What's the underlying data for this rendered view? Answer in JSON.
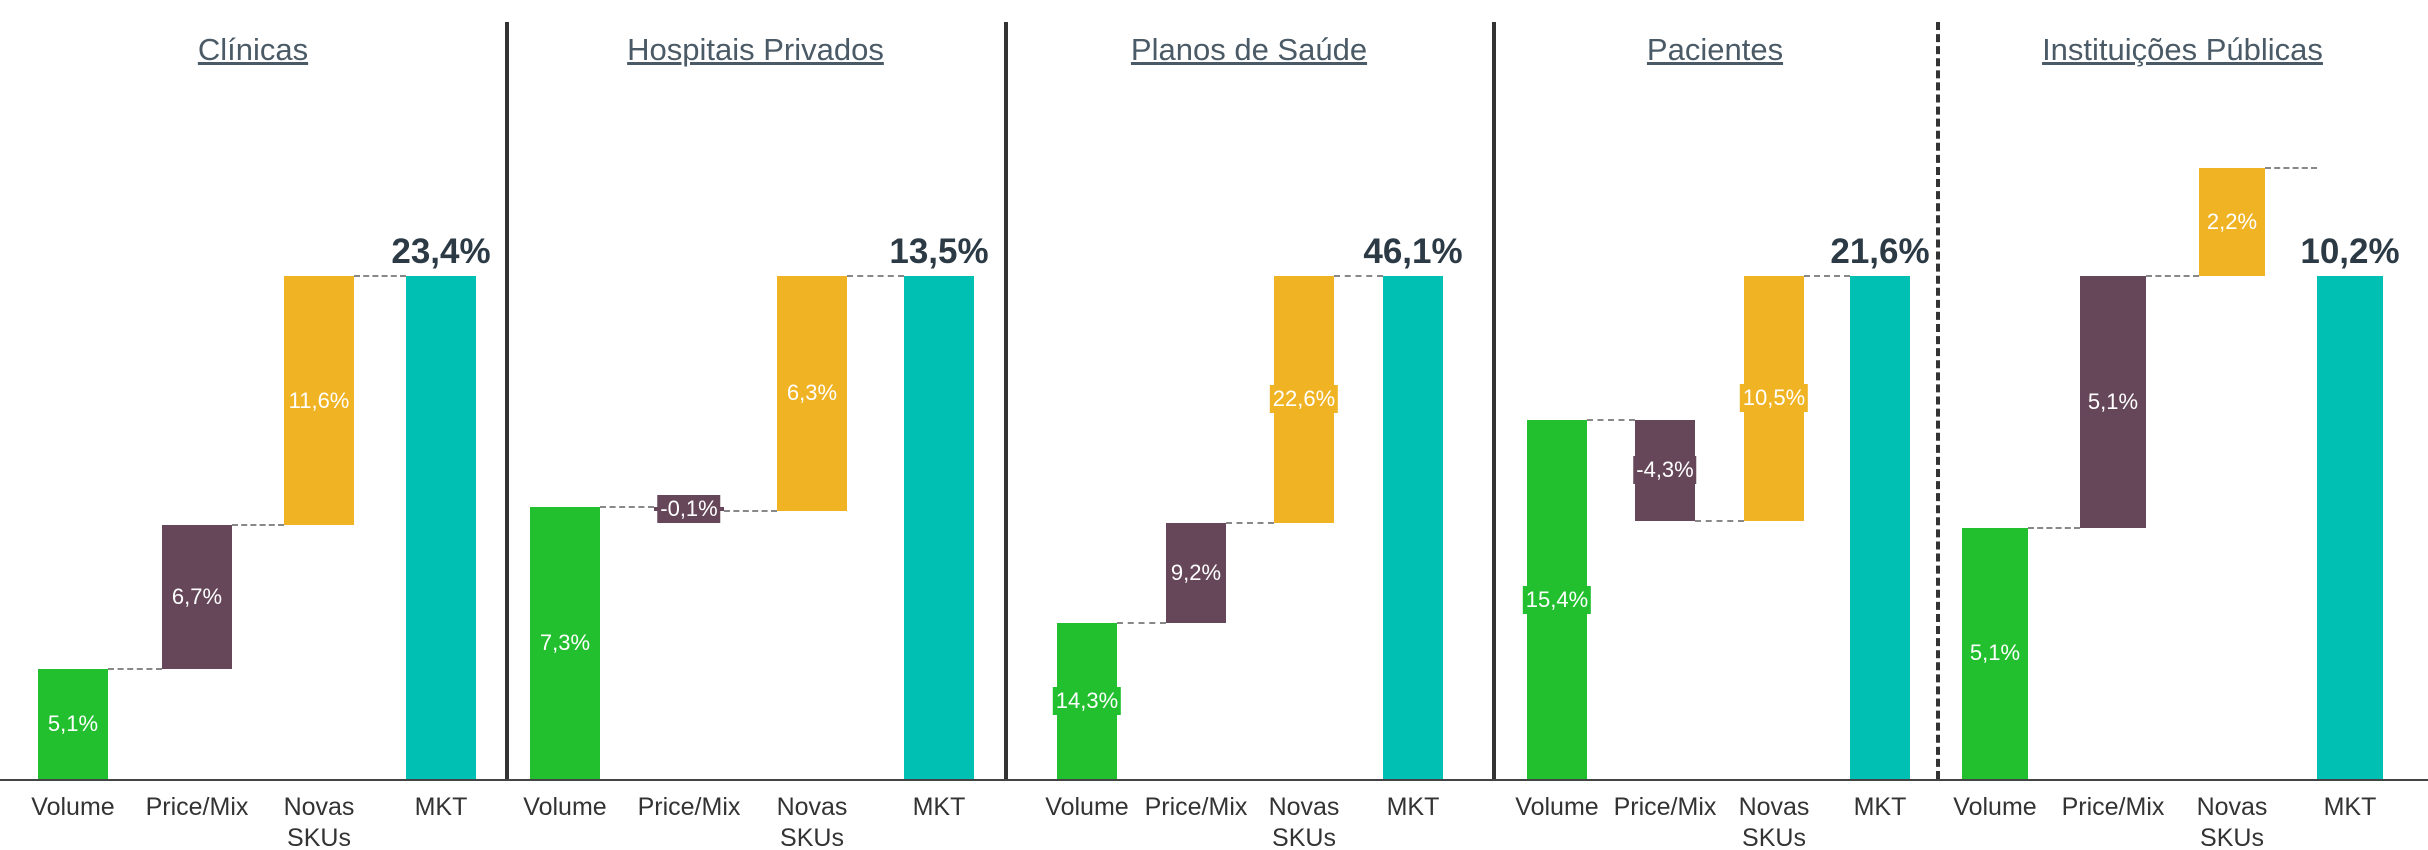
{
  "chart_data": [
    {
      "type": "waterfall",
      "title": "Clínicas",
      "categories": [
        "Volume",
        "Price/Mix",
        "Novas SKUs",
        "MKT"
      ],
      "values": [
        5.1,
        6.7,
        11.6,
        23.4
      ],
      "value_labels": [
        "5,1%",
        "6,7%",
        "11,6%",
        "23,4%"
      ],
      "colors": [
        "#22c02e",
        "#66475a",
        "#f0b323",
        "#00bfb3"
      ]
    },
    {
      "type": "waterfall",
      "title": "Hospitais Privados",
      "categories": [
        "Volume",
        "Price/Mix",
        "Novas SKUs",
        "MKT"
      ],
      "values": [
        7.3,
        -0.1,
        6.3,
        13.5
      ],
      "value_labels": [
        "7,3%",
        "-0,1%",
        "6,3%",
        "13,5%"
      ],
      "colors": [
        "#22c02e",
        "#66475a",
        "#f0b323",
        "#00bfb3"
      ]
    },
    {
      "type": "waterfall",
      "title": "Planos de Saúde",
      "categories": [
        "Volume",
        "Price/Mix",
        "Novas SKUs",
        "MKT"
      ],
      "values": [
        14.3,
        9.2,
        22.6,
        46.1
      ],
      "value_labels": [
        "14,3%",
        "9,2%",
        "22,6%",
        "46,1%"
      ],
      "colors": [
        "#22c02e",
        "#66475a",
        "#f0b323",
        "#00bfb3"
      ]
    },
    {
      "type": "waterfall",
      "title": "Pacientes",
      "categories": [
        "Volume",
        "Price/Mix",
        "Novas SKUs",
        "MKT"
      ],
      "values": [
        15.4,
        -4.3,
        10.5,
        21.6
      ],
      "value_labels": [
        "15,4%",
        "-4,3%",
        "10,5%",
        "21,6%"
      ],
      "colors": [
        "#22c02e",
        "#66475a",
        "#f0b323",
        "#00bfb3"
      ]
    },
    {
      "type": "waterfall",
      "title": "Instituições Públicas",
      "categories": [
        "Volume",
        "Price/Mix",
        "Novas SKUs",
        "MKT"
      ],
      "values": [
        5.1,
        5.1,
        2.2,
        10.2
      ],
      "value_labels": [
        "5,1%",
        "5,1%",
        "2,2%",
        "10,2%"
      ],
      "colors": [
        "#22c02e",
        "#66475a",
        "#f0b323",
        "#00bfb3"
      ]
    }
  ]
}
